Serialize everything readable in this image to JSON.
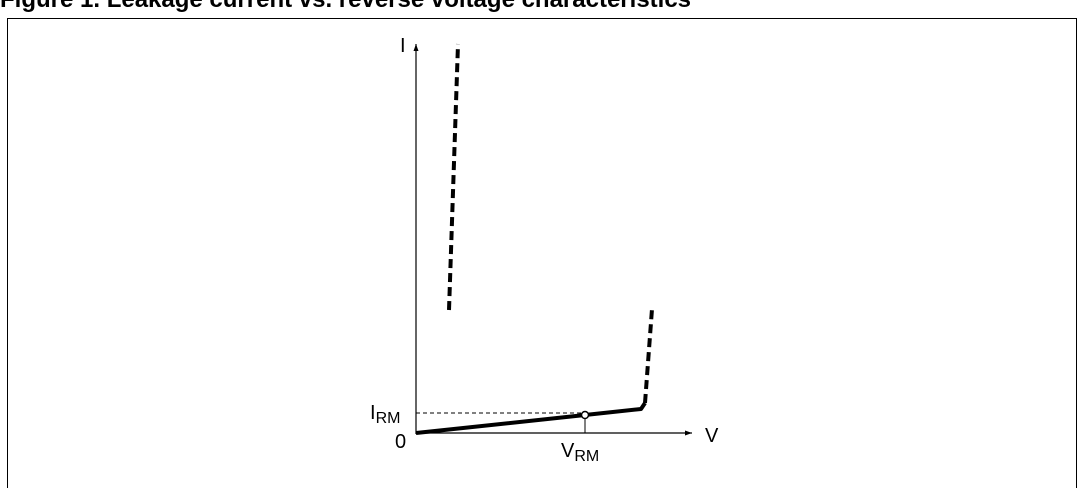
{
  "figure": {
    "caption": "Figure 1.    Leakage current vs. reverse voltage characteristics"
  },
  "diagram": {
    "y_axis_label": "I",
    "x_axis_label": "V",
    "origin_label": "0",
    "irm_label": {
      "main": "I",
      "sub": "RM"
    },
    "vrm_label": {
      "main": "V",
      "sub": "RM"
    },
    "colors": {
      "line": "#000000",
      "guide": "#000000",
      "background": "#ffffff"
    }
  }
}
